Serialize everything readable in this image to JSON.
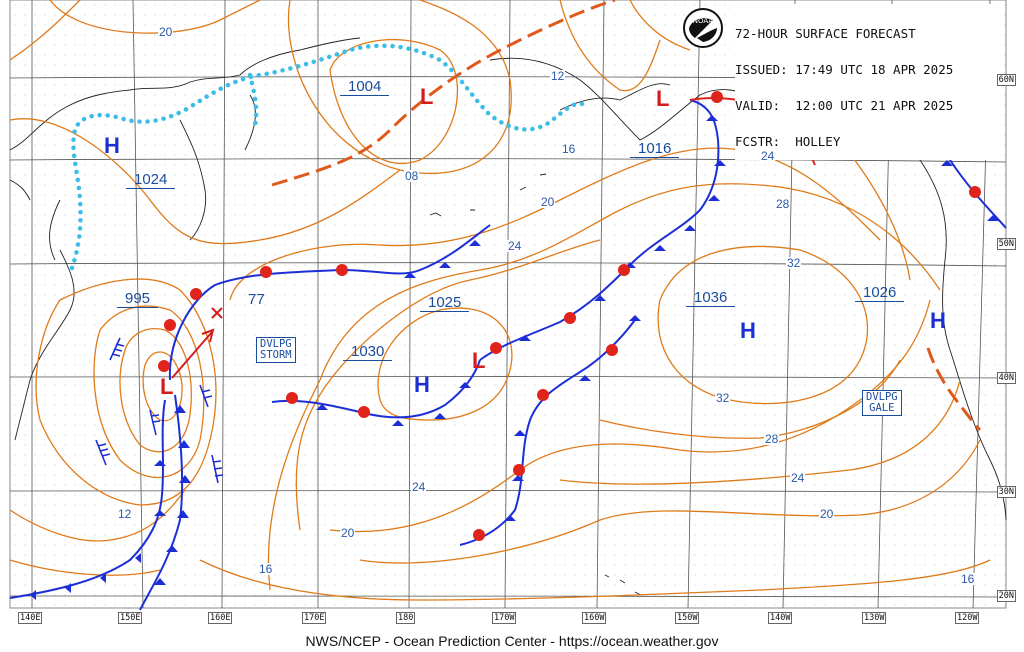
{
  "header": {
    "title": "72-HOUR SURFACE FORECAST",
    "issued": "ISSUED: 17:49 UTC 18 APR 2025",
    "valid": "VALID:  12:00 UTC 21 APR 2025",
    "forecaster": "FCSTR:  HOLLEY"
  },
  "logo": {
    "text": "NOAA",
    "icon": "noaa-logo"
  },
  "footer": "NWS/NCEP - Ocean Prediction Center - https://ocean.weather.gov",
  "lat_labels": [
    "60N",
    "50N",
    "40N",
    "30N",
    "20N"
  ],
  "lon_labels": [
    "140E",
    "150E",
    "160E",
    "170E",
    "180",
    "170W",
    "160W",
    "150W",
    "140W",
    "130W",
    "120W"
  ],
  "pressure_centers": [
    {
      "type": "H",
      "value": "1024"
    },
    {
      "type": "L",
      "value": "1004"
    },
    {
      "type": "L",
      "value": "1016"
    },
    {
      "type": "L",
      "value": "995"
    },
    {
      "type": "L",
      "value": "1025"
    },
    {
      "type": "H",
      "value": "1030"
    },
    {
      "type": "H",
      "value": "1036"
    },
    {
      "type": "H",
      "value": "1026"
    }
  ],
  "pressure_labels": [
    "1004",
    "1024",
    "1016",
    "995",
    "1025",
    "1030",
    "1036",
    "1026"
  ],
  "aux_labels": [
    "77"
  ],
  "warnings": [
    {
      "line1": "DVLPG",
      "line2": "STORM"
    },
    {
      "line1": "DVLPG",
      "line2": "GALE"
    }
  ],
  "isobar_labels": [
    "20",
    "12",
    "08",
    "16",
    "20",
    "24",
    "24",
    "28",
    "32",
    "32",
    "28",
    "24",
    "24",
    "20",
    "20",
    "16",
    "16",
    "12"
  ],
  "colors": {
    "isobar": "#e07b1a",
    "cold_front": "#1c2fd6",
    "warm_front": "#e0241c",
    "trough": "#e0591c",
    "ice": "#3cbde8",
    "high": "#1c2fd6",
    "low": "#d31c1c"
  }
}
